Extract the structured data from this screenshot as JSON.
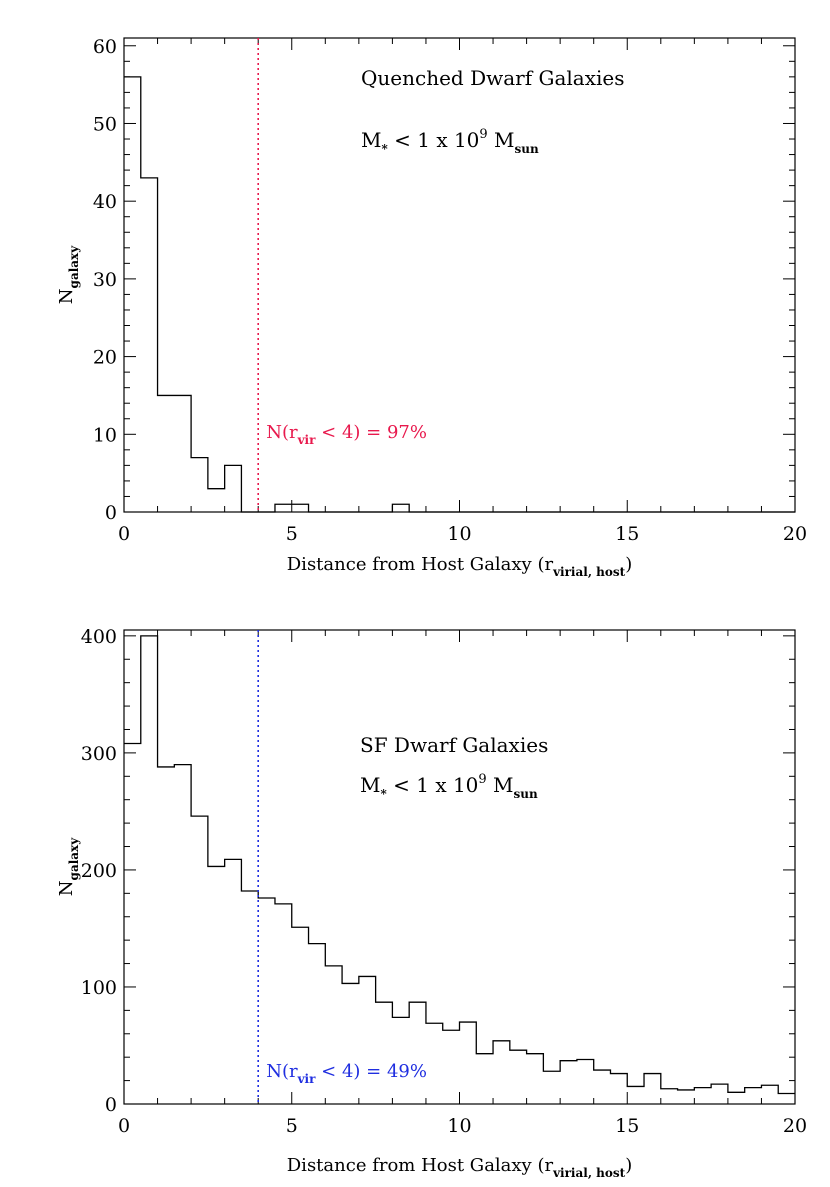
{
  "chart_data": [
    {
      "type": "histogram",
      "bin_width": 0.5,
      "bin_starts": [
        0,
        0.5,
        1,
        1.5,
        2,
        2.5,
        3,
        3.5,
        4,
        4.5,
        5,
        5.5,
        6,
        6.5,
        7,
        7.5,
        8,
        8.5,
        9,
        9.5,
        10,
        10.5,
        11,
        11.5,
        12,
        12.5,
        13,
        13.5,
        14,
        14.5,
        15,
        15.5,
        16,
        16.5,
        17,
        17.5,
        18,
        18.5,
        19,
        19.5
      ],
      "values": [
        56,
        43,
        15,
        15,
        7,
        3,
        6,
        0,
        0,
        1,
        1,
        0,
        0,
        0,
        0,
        0,
        1,
        0,
        0,
        0,
        0,
        0,
        0,
        0,
        0,
        0,
        0,
        0,
        0,
        0,
        0,
        0,
        0,
        0,
        0,
        0,
        0,
        0,
        0,
        0
      ],
      "xlim": [
        0,
        20
      ],
      "ylim": [
        0,
        61
      ],
      "xticks": [
        0,
        5,
        10,
        15,
        20
      ],
      "yticks": [
        0,
        10,
        20,
        30,
        40,
        50,
        60
      ],
      "vline": {
        "x": 4,
        "color": "#e8194d"
      },
      "annotation_title": "Quenched Dwarf Galaxies",
      "mass_label": {
        "a": "M",
        "a_sub": "*",
        "b": " < 1 x 10",
        "b_sup": "9",
        "c": " M",
        "c_sub": "sun"
      },
      "fraction_label": {
        "a": "N(r",
        "a_sub": "vir",
        "b": " < 4) = 97%",
        "color": "#e8194d"
      },
      "ylabel": {
        "main": "N",
        "sub": "galaxy"
      },
      "xlabel": {
        "main": "Distance from Host Galaxy (r",
        "sub": "virial, host",
        "end": ")"
      }
    },
    {
      "type": "histogram",
      "bin_width": 0.5,
      "bin_starts": [
        0,
        0.5,
        1,
        1.5,
        2,
        2.5,
        3,
        3.5,
        4,
        4.5,
        5,
        5.5,
        6,
        6.5,
        7,
        7.5,
        8,
        8.5,
        9,
        9.5,
        10,
        10.5,
        11,
        11.5,
        12,
        12.5,
        13,
        13.5,
        14,
        14.5,
        15,
        15.5,
        16,
        16.5,
        17,
        17.5,
        18,
        18.5,
        19,
        19.5
      ],
      "values": [
        308,
        400,
        288,
        290,
        246,
        203,
        209,
        182,
        176,
        171,
        151,
        137,
        118,
        103,
        109,
        87,
        74,
        87,
        69,
        63,
        70,
        43,
        54,
        46,
        43,
        28,
        37,
        38,
        29,
        26,
        15,
        26,
        13,
        12,
        14,
        17,
        10,
        14,
        16,
        9
      ],
      "xlim": [
        0,
        20
      ],
      "ylim": [
        0,
        405
      ],
      "xticks": [
        0,
        5,
        10,
        15,
        20
      ],
      "yticks": [
        0,
        100,
        200,
        300,
        400
      ],
      "vline": {
        "x": 4,
        "color": "#1f2ee0"
      },
      "annotation_title": "SF Dwarf Galaxies",
      "mass_label": {
        "a": "M",
        "a_sub": "*",
        "b": " < 1 x 10",
        "b_sup": "9",
        "c": " M",
        "c_sub": "sun"
      },
      "fraction_label": {
        "a": "N(r",
        "a_sub": "vir",
        "b": " < 4) = 49%",
        "color": "#1f2ee0"
      },
      "ylabel": {
        "main": "N",
        "sub": "galaxy"
      },
      "xlabel": {
        "main": "Distance from Host Galaxy (r",
        "sub": "virial, host",
        "end": ")"
      }
    }
  ]
}
